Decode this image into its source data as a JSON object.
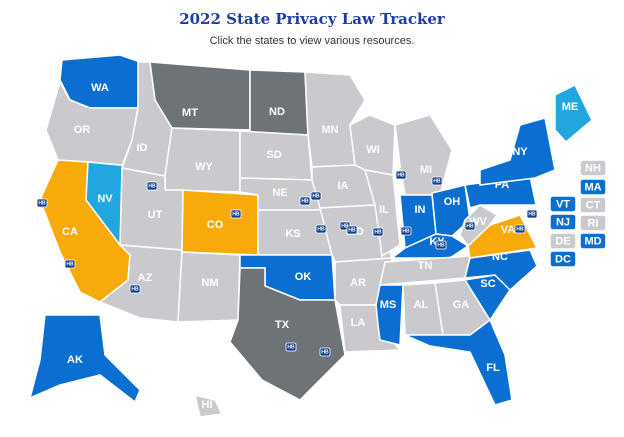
{
  "header": {
    "title": "2022 State Privacy Law Tracker",
    "subtitle": "Click the states to view various resources."
  },
  "badge_label": "HB",
  "states": [
    {
      "label": "WA",
      "color": "#0b6fd1"
    },
    {
      "label": "OR",
      "color": "#c9c9ce"
    },
    {
      "label": "CA",
      "color": "#f7aa0a"
    },
    {
      "label": "NV",
      "color": "#22a6df"
    },
    {
      "label": "ID",
      "color": "#c9c9ce"
    },
    {
      "label": "MT",
      "color": "#6d7377"
    },
    {
      "label": "WY",
      "color": "#c9c9ce"
    },
    {
      "label": "UT",
      "color": "#c9c9ce"
    },
    {
      "label": "AZ",
      "color": "#c9c9ce"
    },
    {
      "label": "CO",
      "color": "#f7aa0a"
    },
    {
      "label": "NM",
      "color": "#c9c9ce"
    },
    {
      "label": "ND",
      "color": "#6d7377"
    },
    {
      "label": "SD",
      "color": "#c9c9ce"
    },
    {
      "label": "NE",
      "color": "#c9c9ce"
    },
    {
      "label": "KS",
      "color": "#c9c9ce"
    },
    {
      "label": "OK",
      "color": "#0b6fd1"
    },
    {
      "label": "TX",
      "color": "#6d7377"
    },
    {
      "label": "MN",
      "color": "#c9c9ce"
    },
    {
      "label": "IA",
      "color": "#c9c9ce"
    },
    {
      "label": "MO",
      "color": "#c9c9ce"
    },
    {
      "label": "AR",
      "color": "#c9c9ce"
    },
    {
      "label": "LA",
      "color": "#c9c9ce"
    },
    {
      "label": "WI",
      "color": "#c9c9ce"
    },
    {
      "label": "IL",
      "color": "#c9c9ce"
    },
    {
      "label": "MI",
      "color": "#c9c9ce"
    },
    {
      "label": "IN",
      "color": "#0b6fd1"
    },
    {
      "label": "OH",
      "color": "#0b6fd1"
    },
    {
      "label": "KY",
      "color": "#0b6fd1"
    },
    {
      "label": "TN",
      "color": "#c9c9ce"
    },
    {
      "label": "MS",
      "color": "#0b6fd1"
    },
    {
      "label": "AL",
      "color": "#c9c9ce"
    },
    {
      "label": "GA",
      "color": "#c9c9ce"
    },
    {
      "label": "FL",
      "color": "#0b6fd1"
    },
    {
      "label": "SC",
      "color": "#0b6fd1"
    },
    {
      "label": "NC",
      "color": "#0b6fd1"
    },
    {
      "label": "VA",
      "color": "#f7aa0a"
    },
    {
      "label": "WV",
      "color": "#c9c9ce"
    },
    {
      "label": "PA",
      "color": "#0b6fd1"
    },
    {
      "label": "NY",
      "color": "#0b6fd1"
    },
    {
      "label": "ME",
      "color": "#22a6df"
    },
    {
      "label": "AK",
      "color": "#0b6fd1"
    },
    {
      "label": "HI",
      "color": "#c9c9ce"
    },
    {
      "label": "NH",
      "color": "#c9c9ce"
    },
    {
      "label": "MA",
      "color": "#0b6fd1"
    },
    {
      "label": "VT",
      "color": "#0b6fd1"
    },
    {
      "label": "CT",
      "color": "#c9c9ce"
    },
    {
      "label": "NJ",
      "color": "#0b6fd1"
    },
    {
      "label": "RI",
      "color": "#c9c9ce"
    },
    {
      "label": "DE",
      "color": "#c9c9ce"
    },
    {
      "label": "MD",
      "color": "#0b6fd1"
    },
    {
      "label": "DC",
      "color": "#0b6fd1"
    }
  ]
}
